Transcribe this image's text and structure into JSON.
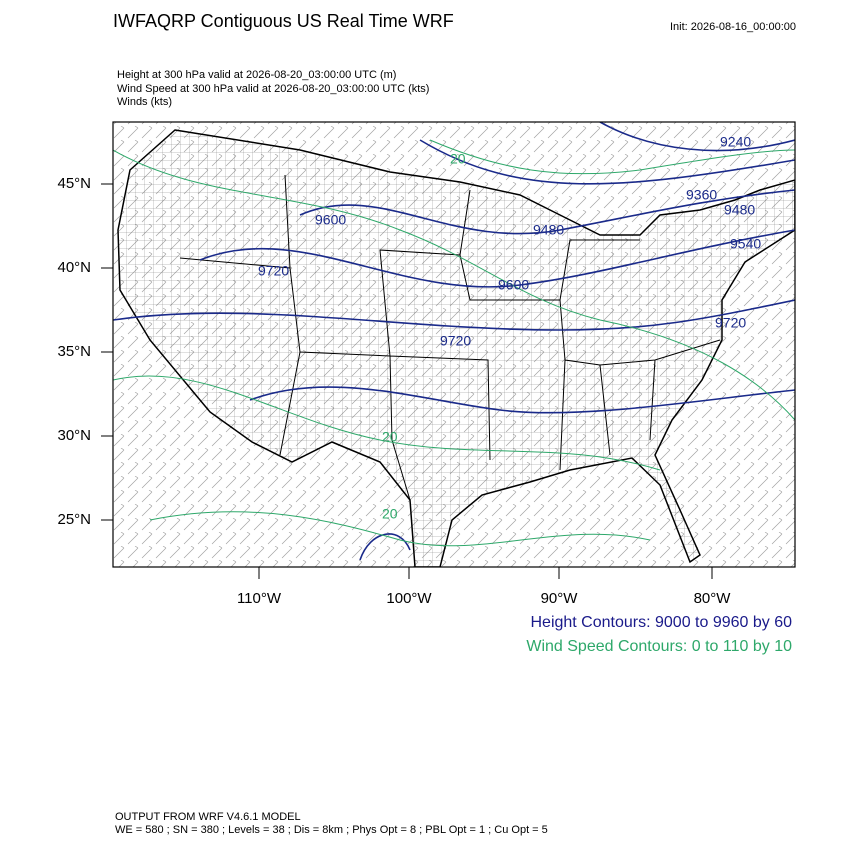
{
  "header": {
    "title": "IWFAQRP Contiguous US Real Time WRF",
    "init": "Init: 2026-08-16_00:00:00"
  },
  "fields": [
    "Height at 300 hPa valid at 2026-08-20_03:00:00 UTC   (m)",
    "Wind Speed at 300 hPa valid at 2026-08-20_03:00:00 UTC   (kts)",
    "Winds   (kts)"
  ],
  "map": {
    "lat_labels": [
      "45°N",
      "40°N",
      "35°N",
      "30°N",
      "25°N"
    ],
    "lon_labels": [
      "110°W",
      "100°W",
      "90°W",
      "80°W"
    ],
    "height_contour_labels": [
      "9240",
      "9360",
      "9480",
      "9600",
      "9480",
      "9540",
      "9720",
      "9600",
      "9720",
      "9720"
    ],
    "wind_contour_labels": [
      "20",
      "20",
      "20"
    ]
  },
  "legend": {
    "height": "Height Contours: 9000 to 9960 by 60",
    "wind": "Wind Speed Contours: 0 to 110 by 10"
  },
  "footer": {
    "line1": "OUTPUT FROM WRF V4.6.1 MODEL",
    "line2": "WE = 580 ; SN = 380 ; Levels = 38 ; Dis = 8km ; Phys Opt = 8 ; PBL Opt = 1 ; Cu Opt = 5"
  }
}
